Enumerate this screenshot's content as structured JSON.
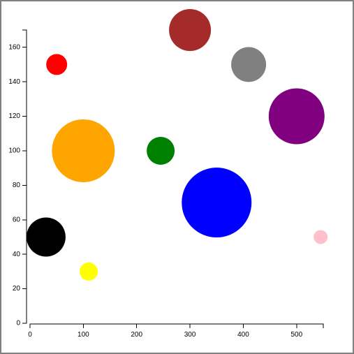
{
  "chart_data": {
    "type": "scatter",
    "title": "",
    "xlabel": "",
    "ylabel": "",
    "xlim": [
      0,
      550
    ],
    "ylim": [
      0,
      170
    ],
    "x_ticks": [
      0,
      100,
      200,
      300,
      400,
      500
    ],
    "y_ticks": [
      0,
      20,
      40,
      60,
      80,
      100,
      120,
      140,
      160
    ],
    "grid": false,
    "legend": "none",
    "points": [
      {
        "x": 30,
        "y": 50,
        "size": 28,
        "color": "#000000"
      },
      {
        "x": 50,
        "y": 150,
        "size": 15,
        "color": "#ff0000"
      },
      {
        "x": 100,
        "y": 100,
        "size": 45,
        "color": "#ffa500"
      },
      {
        "x": 110,
        "y": 30,
        "size": 13,
        "color": "#ffff00"
      },
      {
        "x": 245,
        "y": 100,
        "size": 20,
        "color": "#008000"
      },
      {
        "x": 300,
        "y": 170,
        "size": 30,
        "color": "#a52a2a"
      },
      {
        "x": 350,
        "y": 70,
        "size": 50,
        "color": "#0000ff"
      },
      {
        "x": 410,
        "y": 150,
        "size": 25,
        "color": "#808080"
      },
      {
        "x": 500,
        "y": 120,
        "size": 40,
        "color": "#800080"
      },
      {
        "x": 545,
        "y": 50,
        "size": 10,
        "color": "#ffc0cb"
      }
    ]
  }
}
